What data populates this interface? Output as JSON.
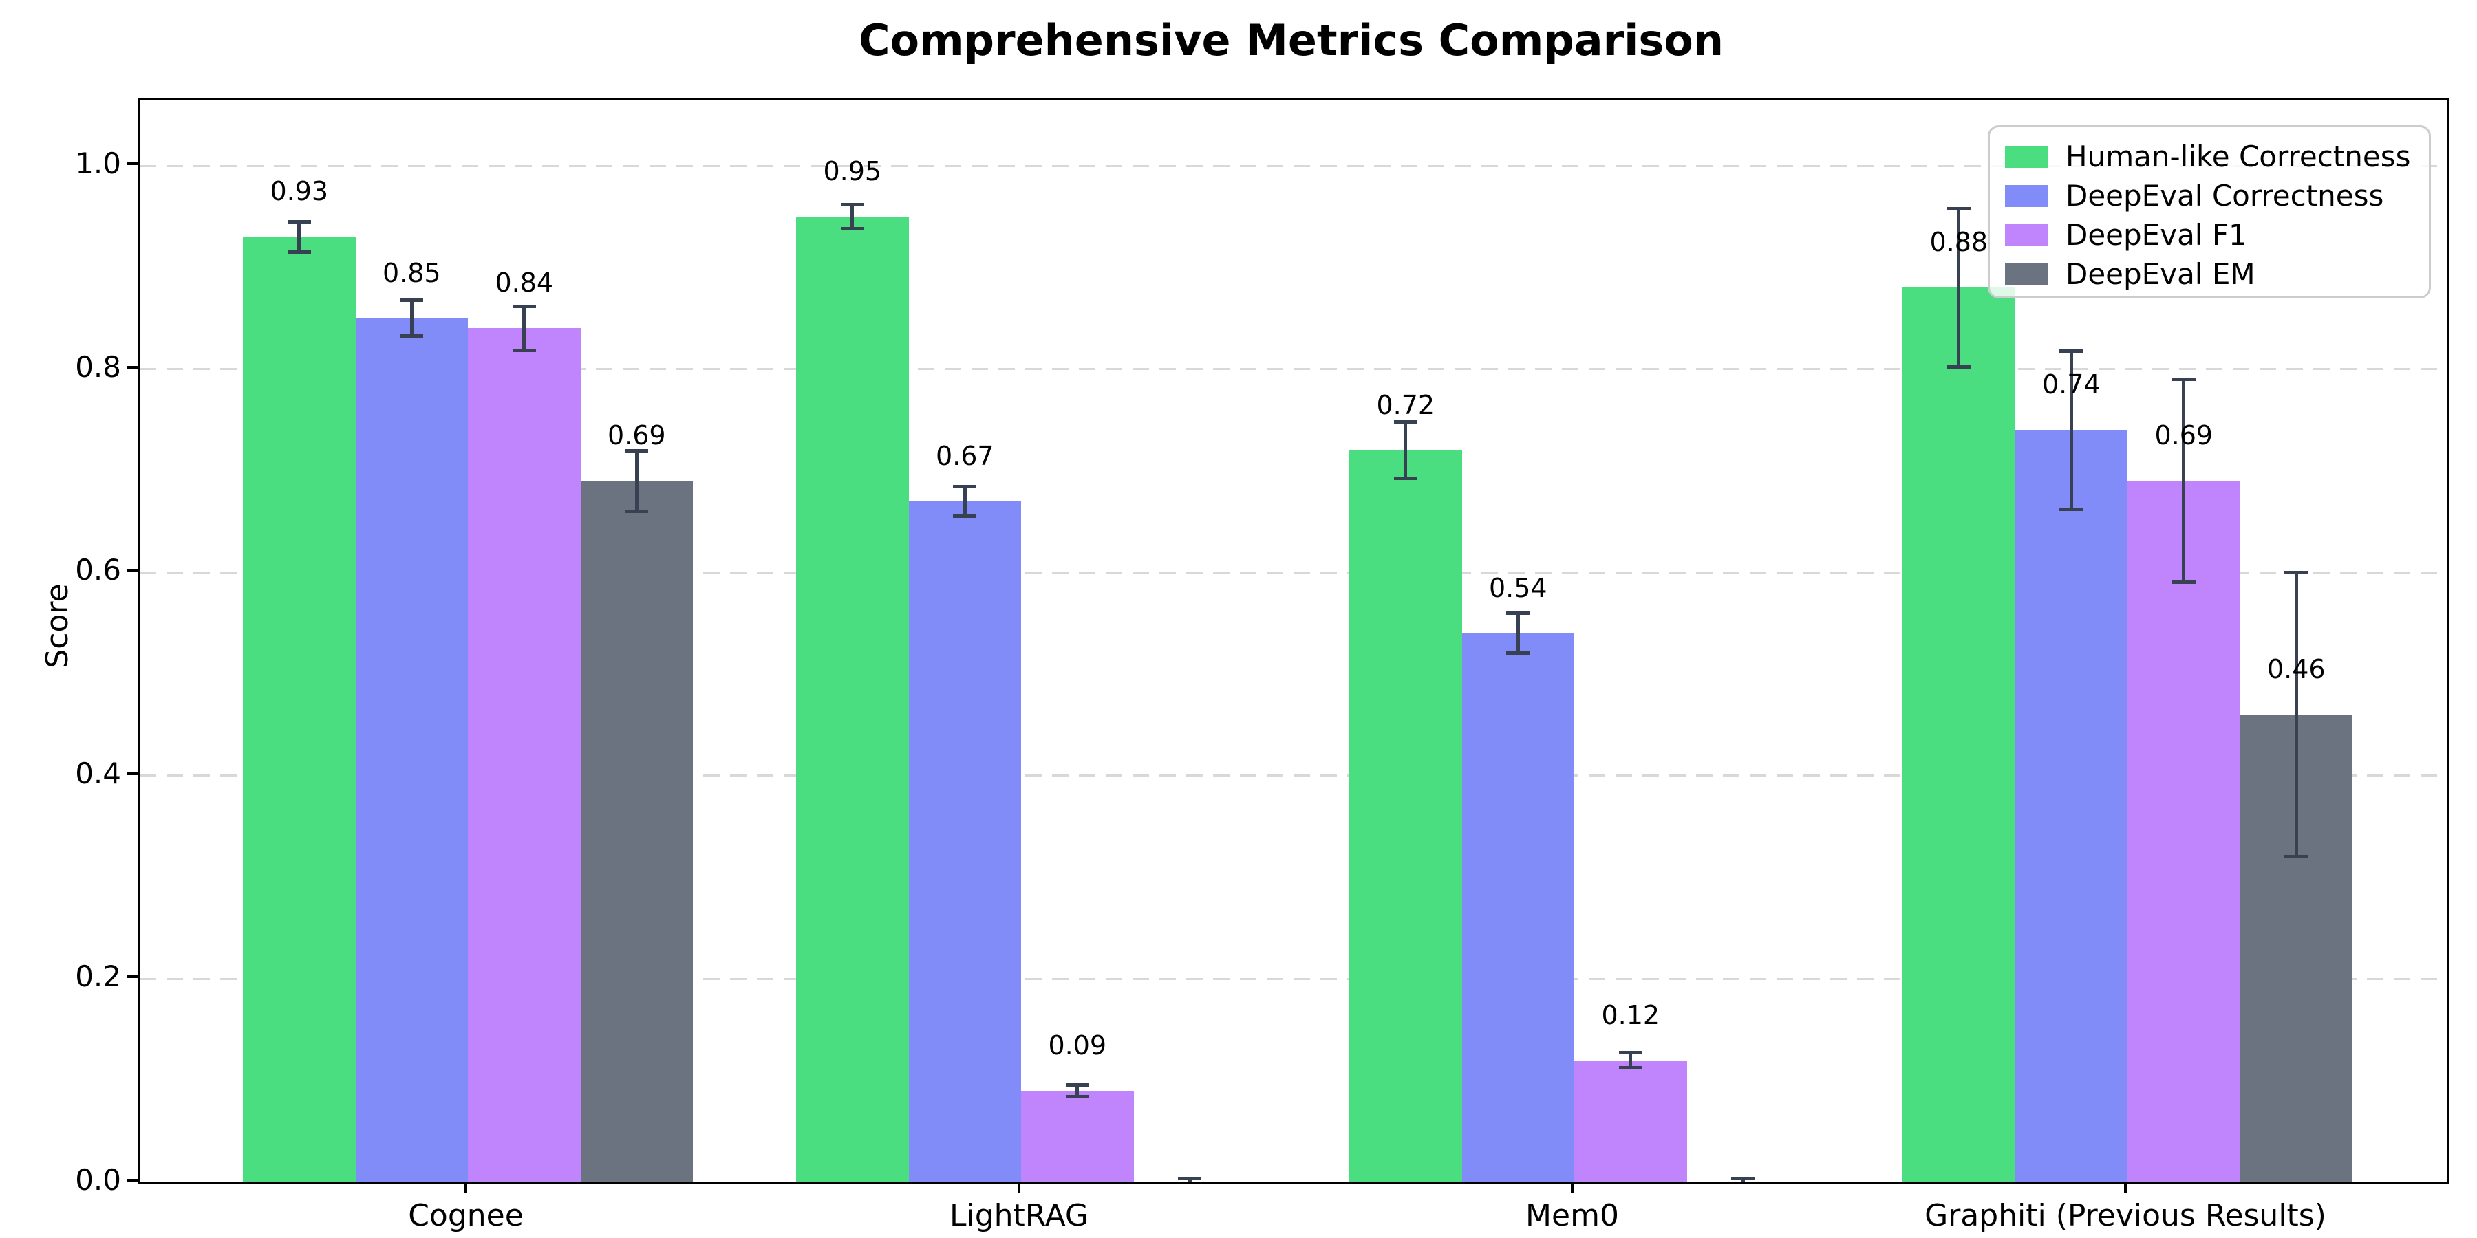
{
  "title": "Comprehensive Metrics Comparison",
  "chart_data": {
    "type": "bar",
    "title": "Comprehensive Metrics Comparison",
    "ylabel": "Score",
    "xlabel": "",
    "categories": [
      "Cognee",
      "LightRAG",
      "Mem0",
      "Graphiti (Previous Results)"
    ],
    "series": [
      {
        "name": "Human-like Correctness",
        "color": "#4ade80",
        "values": [
          0.93,
          0.95,
          0.72,
          0.88
        ],
        "errors": [
          0.015,
          0.012,
          0.028,
          0.078
        ],
        "labels": [
          "0.93",
          "0.95",
          "0.72",
          "0.88"
        ]
      },
      {
        "name": "DeepEval Correctness",
        "color": "#818cf8",
        "values": [
          0.85,
          0.67,
          0.54,
          0.74
        ],
        "errors": [
          0.018,
          0.015,
          0.02,
          0.078
        ],
        "labels": [
          "0.85",
          "0.67",
          "0.54",
          "0.74"
        ]
      },
      {
        "name": "DeepEval F1",
        "color": "#c084fc",
        "values": [
          0.84,
          0.09,
          0.12,
          0.69
        ],
        "errors": [
          0.022,
          0.006,
          0.008,
          0.1
        ],
        "labels": [
          "0.84",
          "0.09",
          "0.12",
          "0.69"
        ]
      },
      {
        "name": "DeepEval EM",
        "color": "#6b7280",
        "values": [
          0.69,
          0.0,
          0.0,
          0.46
        ],
        "errors": [
          0.03,
          0.004,
          0.004,
          0.14
        ],
        "labels": [
          "0.69",
          "",
          "",
          "0.46"
        ]
      }
    ],
    "yticks": [
      "0.0",
      "0.2",
      "0.4",
      "0.6",
      "0.8",
      "1.0"
    ],
    "ylim": [
      0.0,
      1.065
    ],
    "grid": "horizontal-dashed",
    "legend_position": "upper right",
    "error_bar_color": "#374151"
  }
}
